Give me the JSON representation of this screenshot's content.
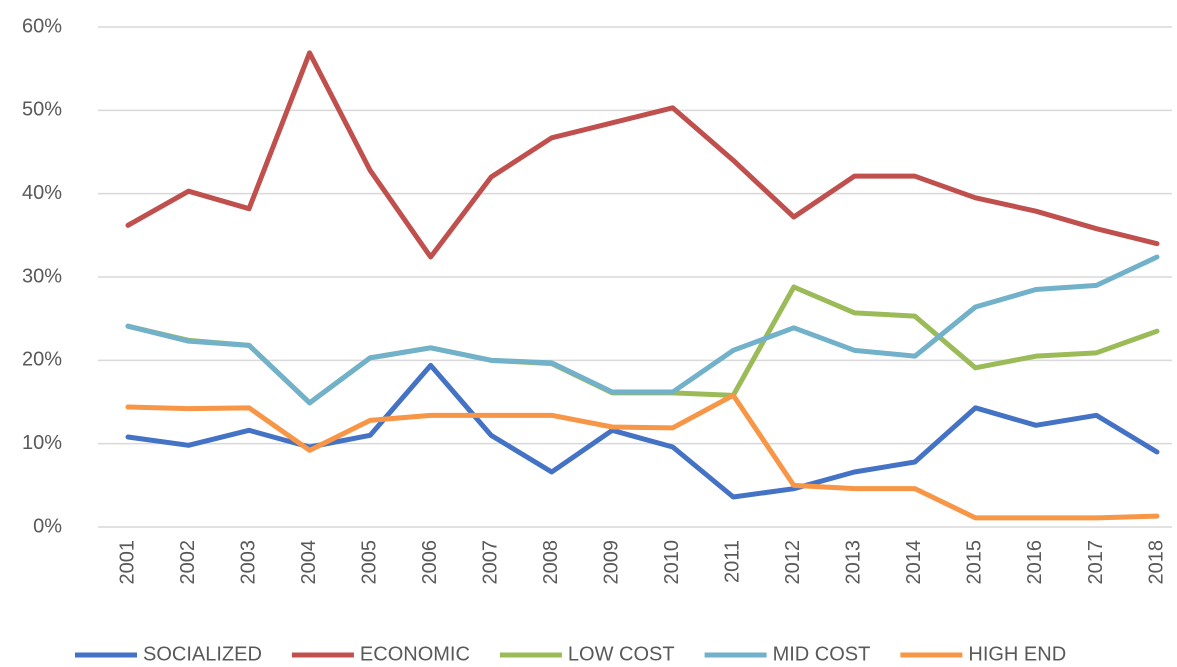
{
  "chart_data": {
    "type": "line",
    "categories": [
      "2001",
      "2002",
      "2003",
      "2004",
      "2005",
      "2006",
      "2007",
      "2008",
      "2009",
      "2010",
      "2011",
      "2012",
      "2013",
      "2014",
      "2015",
      "2016",
      "2017",
      "2018"
    ],
    "series": [
      {
        "name": "SOCIALIZED",
        "color": "#4472c4",
        "values": [
          10.8,
          9.8,
          11.6,
          9.6,
          11,
          19.4,
          11,
          6.6,
          11.6,
          9.6,
          3.6,
          4.6,
          6.6,
          7.8,
          14.3,
          12.2,
          13.4,
          9
        ]
      },
      {
        "name": "ECONOMIC",
        "color": "#c0504d",
        "values": [
          36.2,
          40.3,
          38.2,
          56.9,
          42.8,
          32.4,
          42,
          46.7,
          48.5,
          50.3,
          44,
          37.2,
          42.1,
          42.1,
          39.5,
          37.9,
          35.8,
          34
        ]
      },
      {
        "name": "LOW COST",
        "color": "#9bbb59",
        "values": [
          24.1,
          22.4,
          21.8,
          14.9,
          20.3,
          21.5,
          20,
          19.6,
          16.1,
          16.1,
          15.8,
          28.8,
          25.7,
          25.3,
          19.1,
          20.5,
          20.9,
          23.5
        ]
      },
      {
        "name": "MID COST",
        "color": "#71b1c9",
        "values": [
          24.1,
          22.3,
          21.8,
          14.9,
          20.3,
          21.5,
          20,
          19.7,
          16.2,
          16.2,
          21.2,
          23.9,
          21.2,
          20.5,
          26.4,
          28.5,
          29,
          32.4
        ]
      },
      {
        "name": "HIGH END",
        "color": "#f79646",
        "values": [
          14.4,
          14.2,
          14.3,
          9.2,
          12.8,
          13.4,
          13.4,
          13.4,
          12,
          11.9,
          15.8,
          5,
          4.6,
          4.6,
          1.1,
          1.1,
          1.1,
          1.3
        ]
      }
    ],
    "ylim": [
      0,
      60
    ],
    "yticks": [
      {
        "value": 0,
        "label": "0%"
      },
      {
        "value": 10,
        "label": "10%"
      },
      {
        "value": 20,
        "label": "20%"
      },
      {
        "value": 30,
        "label": "30%"
      },
      {
        "value": 40,
        "label": "40%"
      },
      {
        "value": 50,
        "label": "50%"
      },
      {
        "value": 60,
        "label": "60%"
      }
    ],
    "grid": true,
    "legend": "bottom"
  }
}
